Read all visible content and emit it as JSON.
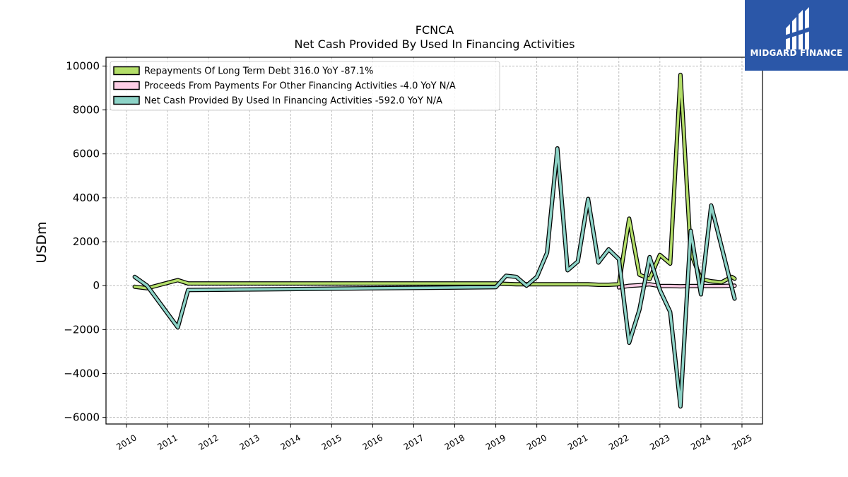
{
  "logo": {
    "text": "MIDGARD FINANCE",
    "color": "#2b57a8"
  },
  "chart_data": {
    "type": "line",
    "title": "FCNCA",
    "subtitle": "Net Cash Provided By Used In Financing Activities",
    "xlabel": "",
    "ylabel": "USDm",
    "xlim": [
      2009.5,
      2025.5
    ],
    "ylim": [
      -6300,
      10400
    ],
    "yticks": [
      -6000,
      -4000,
      -2000,
      0,
      2000,
      4000,
      6000,
      8000,
      10000
    ],
    "ytick_labels": [
      "−6000",
      "−4000",
      "−2000",
      "0",
      "2000",
      "4000",
      "6000",
      "8000",
      "10000"
    ],
    "xticks": [
      2010,
      2011,
      2012,
      2013,
      2014,
      2015,
      2016,
      2017,
      2018,
      2019,
      2020,
      2021,
      2022,
      2023,
      2024,
      2025
    ],
    "xtick_labels": [
      "2010",
      "2011",
      "2012",
      "2013",
      "2014",
      "2015",
      "2016",
      "2017",
      "2018",
      "2019",
      "2020",
      "2021",
      "2022",
      "2023",
      "2024",
      "2025"
    ],
    "grid": true,
    "legend_position": "upper-left",
    "series": [
      {
        "name": "Repayments Of Long Term Debt  316.0 YoY -87.1%",
        "color": "#b3de69",
        "points": [
          [
            2010.2,
            -50
          ],
          [
            2010.5,
            -120
          ],
          [
            2011.25,
            250
          ],
          [
            2011.5,
            100
          ],
          [
            2019.0,
            100
          ],
          [
            2019.25,
            80
          ],
          [
            2019.5,
            60
          ],
          [
            2020.0,
            60
          ],
          [
            2021.0,
            60
          ],
          [
            2021.25,
            60
          ],
          [
            2021.5,
            40
          ],
          [
            2021.75,
            40
          ],
          [
            2022.0,
            60
          ],
          [
            2022.25,
            3050
          ],
          [
            2022.5,
            500
          ],
          [
            2022.75,
            300
          ],
          [
            2023.0,
            1400
          ],
          [
            2023.25,
            1000
          ],
          [
            2023.5,
            9600
          ],
          [
            2023.75,
            1500
          ],
          [
            2024.0,
            300
          ],
          [
            2024.25,
            200
          ],
          [
            2024.5,
            150
          ],
          [
            2024.75,
            400
          ],
          [
            2024.82,
            316
          ]
        ]
      },
      {
        "name": "Proceeds From Payments For Other Financing Activities  -4.0 YoY N/A",
        "color": "#fccde5",
        "points": [
          [
            2022.0,
            -80
          ],
          [
            2022.25,
            -10
          ],
          [
            2022.5,
            20
          ],
          [
            2022.75,
            60
          ],
          [
            2023.0,
            -20
          ],
          [
            2023.25,
            -20
          ],
          [
            2023.5,
            -30
          ],
          [
            2023.75,
            -20
          ],
          [
            2024.0,
            -20
          ],
          [
            2024.25,
            -20
          ],
          [
            2024.5,
            -20
          ],
          [
            2024.82,
            -4
          ]
        ]
      },
      {
        "name": "Net Cash Provided By Used In Financing Activities  -592.0 YoY N/A",
        "color": "#8dd3c7",
        "points": [
          [
            2010.2,
            400
          ],
          [
            2010.5,
            0
          ],
          [
            2011.25,
            -1900
          ],
          [
            2011.5,
            -200
          ],
          [
            2019.0,
            -70
          ],
          [
            2019.25,
            450
          ],
          [
            2019.5,
            400
          ],
          [
            2019.75,
            0
          ],
          [
            2020.0,
            400
          ],
          [
            2020.25,
            1500
          ],
          [
            2020.5,
            6250
          ],
          [
            2020.75,
            700
          ],
          [
            2021.0,
            1100
          ],
          [
            2021.25,
            3950
          ],
          [
            2021.5,
            1050
          ],
          [
            2021.75,
            1650
          ],
          [
            2022.0,
            1200
          ],
          [
            2022.25,
            -2600
          ],
          [
            2022.5,
            -1100
          ],
          [
            2022.75,
            1300
          ],
          [
            2023.0,
            -200
          ],
          [
            2023.25,
            -1200
          ],
          [
            2023.5,
            -5500
          ],
          [
            2023.75,
            2500
          ],
          [
            2024.0,
            -400
          ],
          [
            2024.25,
            3650
          ],
          [
            2024.5,
            1800
          ],
          [
            2024.82,
            -592
          ]
        ]
      }
    ]
  }
}
